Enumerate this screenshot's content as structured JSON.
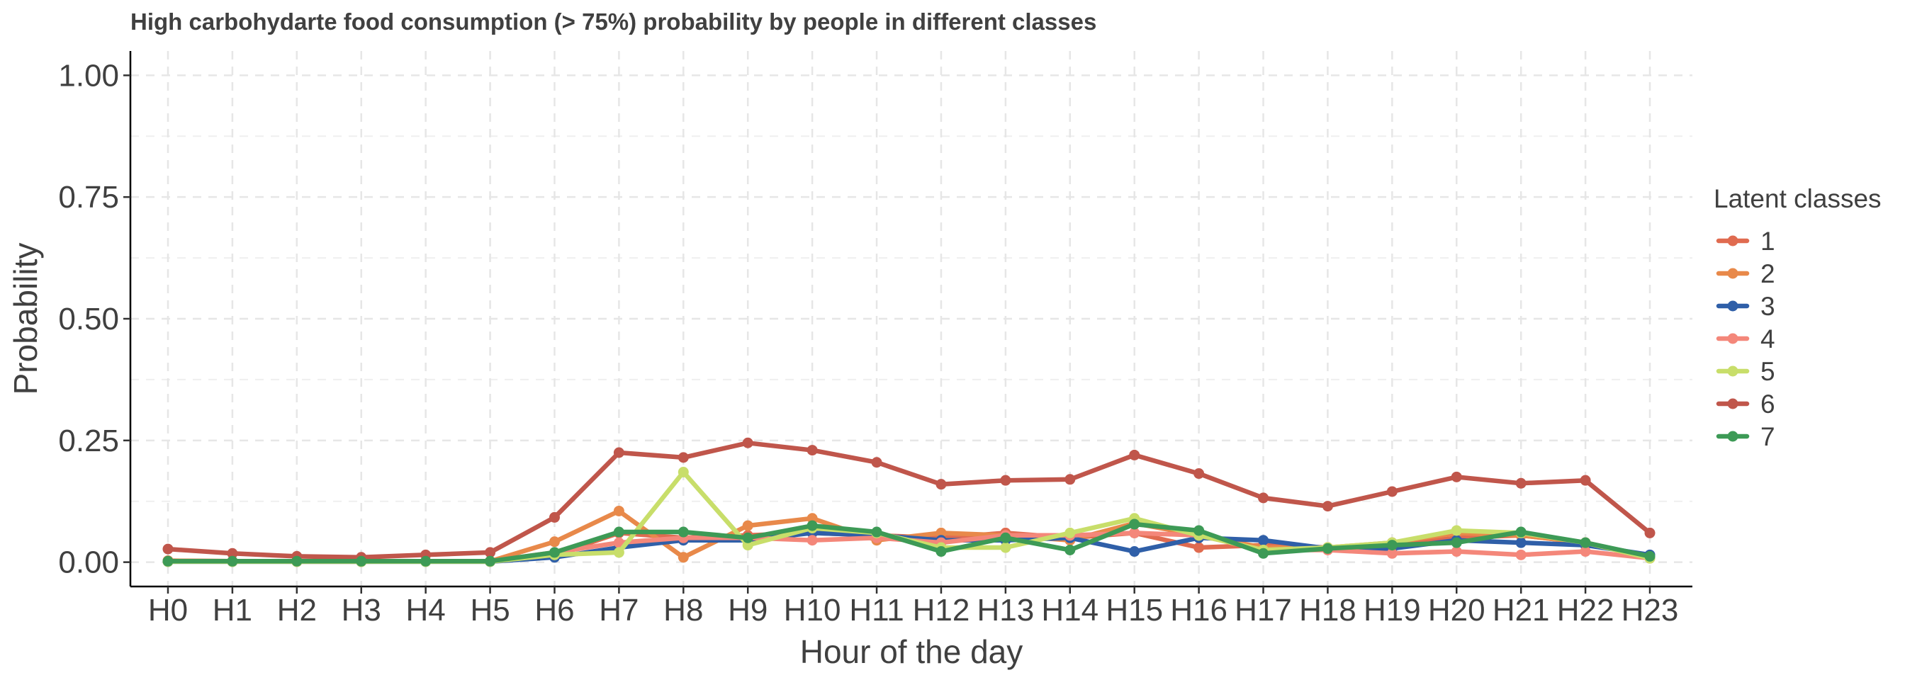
{
  "chart_data": {
    "type": "line",
    "title": "High carbohydarte food consumption (> 75%) probability by people in different classes",
    "xlabel": "Hour of the day",
    "ylabel": "Probability",
    "ylim": [
      -0.05,
      1.05
    ],
    "yticks": [
      "0.00",
      "0.25",
      "0.50",
      "0.75",
      "1.00"
    ],
    "ytick_values": [
      0,
      0.25,
      0.5,
      0.75,
      1.0
    ],
    "grid": true,
    "legend_title": "Latent classes",
    "legend_position": "right",
    "categories": [
      "H0",
      "H1",
      "H2",
      "H3",
      "H4",
      "H5",
      "H6",
      "H7",
      "H8",
      "H9",
      "H10",
      "H11",
      "H12",
      "H13",
      "H14",
      "H15",
      "H16",
      "H17",
      "H18",
      "H19",
      "H20",
      "H21",
      "H22",
      "H23"
    ],
    "series": [
      {
        "name": "1",
        "color": "#e06b50",
        "values": [
          0.003,
          0.002,
          0.002,
          0.002,
          0.002,
          0.002,
          0.015,
          0.06,
          0.05,
          0.055,
          0.06,
          0.055,
          0.05,
          0.06,
          0.05,
          0.06,
          0.03,
          0.035,
          0.03,
          0.035,
          0.05,
          0.055,
          0.04,
          0.01
        ]
      },
      {
        "name": "2",
        "color": "#e8894a",
        "values": [
          0.003,
          0.002,
          0.002,
          0.002,
          0.002,
          0.002,
          0.042,
          0.105,
          0.01,
          0.075,
          0.09,
          0.045,
          0.06,
          0.055,
          0.045,
          0.08,
          0.055,
          0.03,
          0.03,
          0.04,
          0.06,
          0.055,
          0.04,
          0.01
        ]
      },
      {
        "name": "3",
        "color": "#2f5fa8",
        "values": [
          0.001,
          0.001,
          0.001,
          0.001,
          0.001,
          0.001,
          0.01,
          0.03,
          0.045,
          0.045,
          0.06,
          0.055,
          0.045,
          0.045,
          0.05,
          0.022,
          0.05,
          0.045,
          0.028,
          0.028,
          0.045,
          0.04,
          0.035,
          0.015
        ]
      },
      {
        "name": "4",
        "color": "#f4877a",
        "values": [
          0.002,
          0.002,
          0.001,
          0.001,
          0.002,
          0.002,
          0.02,
          0.04,
          0.05,
          0.05,
          0.045,
          0.05,
          0.04,
          0.055,
          0.055,
          0.06,
          0.055,
          0.025,
          0.025,
          0.018,
          0.022,
          0.015,
          0.022,
          0.008
        ]
      },
      {
        "name": "5",
        "color": "#c8de6a",
        "values": [
          0.001,
          0.001,
          0.001,
          0.001,
          0.001,
          0.001,
          0.015,
          0.02,
          0.185,
          0.035,
          0.07,
          0.06,
          0.03,
          0.03,
          0.06,
          0.09,
          0.055,
          0.025,
          0.03,
          0.04,
          0.065,
          0.06,
          0.04,
          0.008
        ]
      },
      {
        "name": "6",
        "color": "#c0564b",
        "values": [
          0.027,
          0.018,
          0.012,
          0.01,
          0.015,
          0.02,
          0.092,
          0.225,
          0.215,
          0.245,
          0.23,
          0.205,
          0.16,
          0.168,
          0.17,
          0.22,
          0.182,
          0.132,
          0.115,
          0.145,
          0.175,
          0.162,
          0.168,
          0.06
        ]
      },
      {
        "name": "7",
        "color": "#3d9a56",
        "values": [
          0.002,
          0.002,
          0.002,
          0.002,
          0.002,
          0.002,
          0.02,
          0.062,
          0.062,
          0.05,
          0.075,
          0.062,
          0.022,
          0.05,
          0.025,
          0.078,
          0.065,
          0.018,
          0.028,
          0.035,
          0.04,
          0.062,
          0.04,
          0.012
        ]
      }
    ]
  }
}
